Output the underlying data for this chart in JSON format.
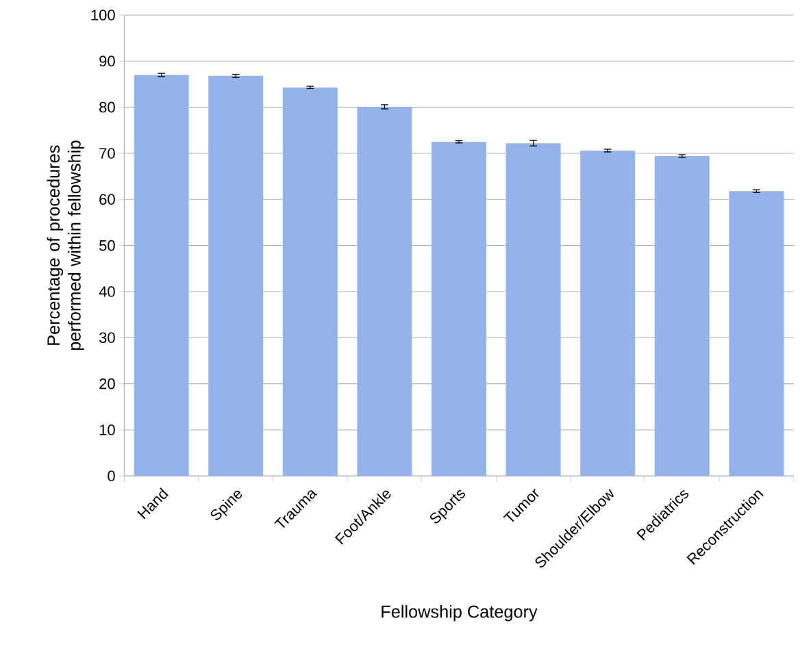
{
  "chart_data": {
    "type": "bar",
    "xlabel": "Fellowship Category",
    "ylabel": "Percentage of procedures performed within fellowship",
    "categories": [
      "Hand",
      "Spine",
      "Trauma",
      "Foot/Ankle",
      "Sports",
      "Tumor",
      "Shoulder/Elbow",
      "Pediatrics",
      "Reconstruction"
    ],
    "values": [
      87.0,
      86.8,
      84.3,
      80.1,
      72.5,
      72.2,
      70.6,
      69.4,
      61.8
    ],
    "errors": [
      0.35,
      0.35,
      0.25,
      0.45,
      0.25,
      0.6,
      0.3,
      0.3,
      0.3
    ],
    "color": "#93b4ea",
    "ylim": [
      0,
      100
    ],
    "yticks": [
      0,
      10,
      20,
      30,
      40,
      50,
      60,
      70,
      80,
      90,
      100
    ],
    "grid": "y"
  }
}
